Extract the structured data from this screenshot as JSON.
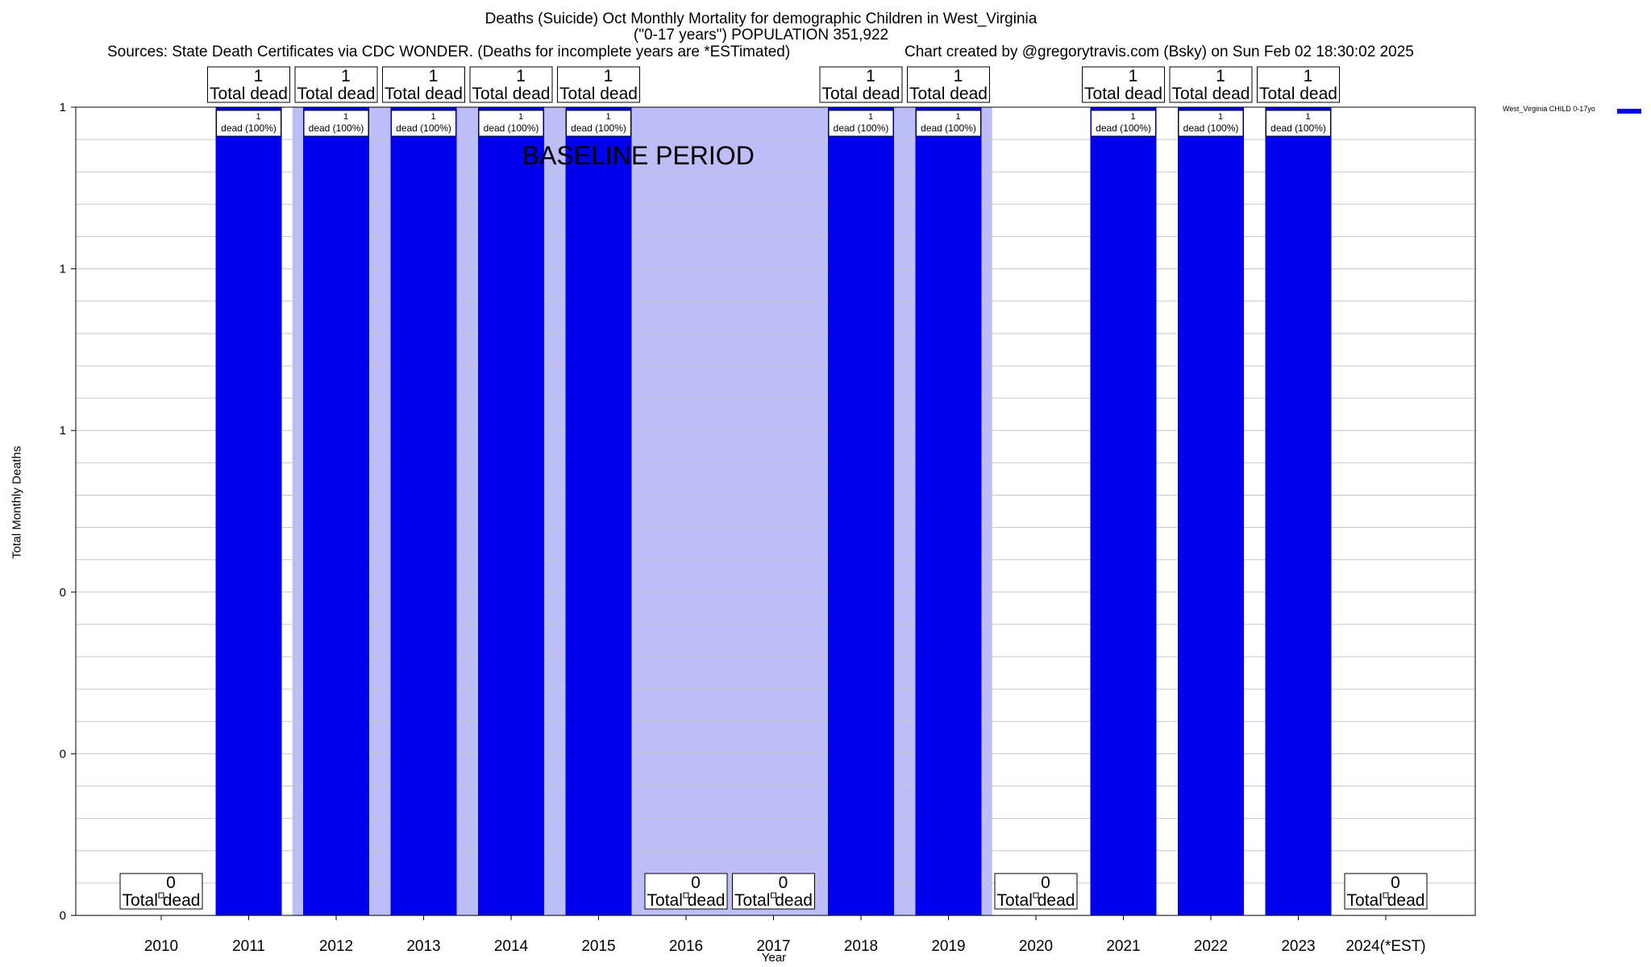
{
  "chart_data": {
    "type": "bar",
    "title": "Deaths (Suicide) Oct Monthly Mortality for demographic Children in West_Virginia",
    "subtitle": "(\"0-17 years\") POPULATION 351,922",
    "sources": "Sources: State Death Certificates via CDC WONDER. (Deaths for incomplete years are *ESTimated)",
    "credit": "Chart created by @gregorytravis.com (Bsky) on Sun Feb 02 18:30:02 2025",
    "xlabel": "Year",
    "ylabel": "Total Monthly Deaths",
    "categories": [
      "2010",
      "2011",
      "2012",
      "2013",
      "2014",
      "2015",
      "2016",
      "2017",
      "2018",
      "2019",
      "2020",
      "2021",
      "2022",
      "2023",
      "2024(*EST)"
    ],
    "series": [
      {
        "name": "West_Virginia CHILD 0-17yo",
        "color": "#0000ee",
        "values": [
          0,
          1,
          1,
          1,
          1,
          1,
          0,
          0,
          1,
          1,
          0,
          1,
          1,
          1,
          0
        ]
      }
    ],
    "total_box_label": "Total dead",
    "bar_labels": [
      "",
      "dead (100%)",
      "dead (100%)",
      "dead (100%)",
      "dead (100%)",
      "dead (100%)",
      "",
      "",
      "dead (100%)",
      "dead (100%)",
      "",
      "dead (100%)",
      "dead (100%)",
      "dead (100%)",
      ""
    ],
    "ylim": [
      0,
      1
    ],
    "ytick_values": [
      0,
      0.2,
      0.4,
      0.6,
      0.8,
      1.0
    ],
    "ytick_labels": [
      "0",
      "0",
      "0",
      "1",
      "1",
      "1"
    ],
    "baseline_period": {
      "label": "BASELINE PERIOD",
      "from": "2012",
      "to": "2019"
    },
    "grid": true,
    "legend_position": "top-right"
  }
}
